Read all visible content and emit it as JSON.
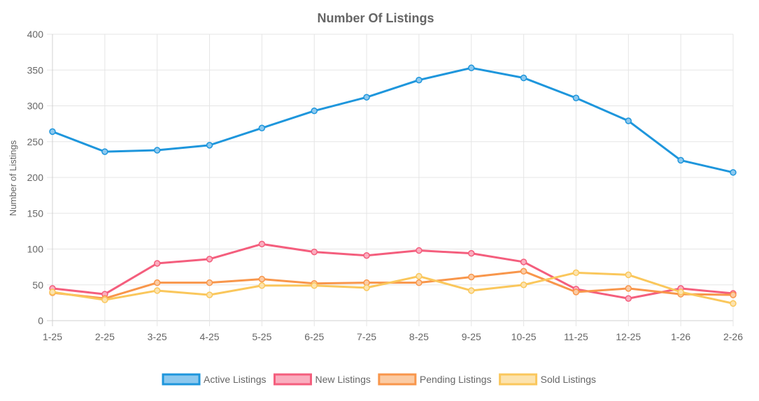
{
  "chart_data": {
    "type": "line",
    "title": "Number Of Listings",
    "xlabel": "",
    "ylabel": "Number of Listings",
    "ylim": [
      0,
      400
    ],
    "y_ticks": [
      0,
      50,
      100,
      150,
      200,
      250,
      300,
      350,
      400
    ],
    "grid": true,
    "legend_position": "bottom",
    "categories": [
      "1-25",
      "2-25",
      "3-25",
      "4-25",
      "5-25",
      "6-25",
      "7-25",
      "8-25",
      "9-25",
      "10-25",
      "11-25",
      "12-25",
      "1-26",
      "2-26"
    ],
    "series": [
      {
        "name": "Active Listings",
        "color": "#1E96DC",
        "fill": "#8CC8EE",
        "values": [
          264,
          236,
          238,
          245,
          269,
          293,
          312,
          336,
          353,
          339,
          311,
          279,
          224,
          207
        ]
      },
      {
        "name": "New Listings",
        "color": "#F45E7D",
        "fill": "#FAAEBF",
        "values": [
          45,
          37,
          80,
          86,
          107,
          96,
          91,
          98,
          94,
          82,
          44,
          31,
          45,
          38
        ]
      },
      {
        "name": "Pending Listings",
        "color": "#F8964B",
        "fill": "#FBCBA4",
        "values": [
          39,
          31,
          53,
          53,
          58,
          52,
          53,
          53,
          61,
          69,
          40,
          45,
          37,
          36
        ]
      },
      {
        "name": "Sold Listings",
        "color": "#FAC75C",
        "fill": "#FCE3AE",
        "values": [
          40,
          29,
          42,
          36,
          49,
          49,
          46,
          62,
          42,
          50,
          67,
          64,
          40,
          24
        ]
      }
    ]
  }
}
